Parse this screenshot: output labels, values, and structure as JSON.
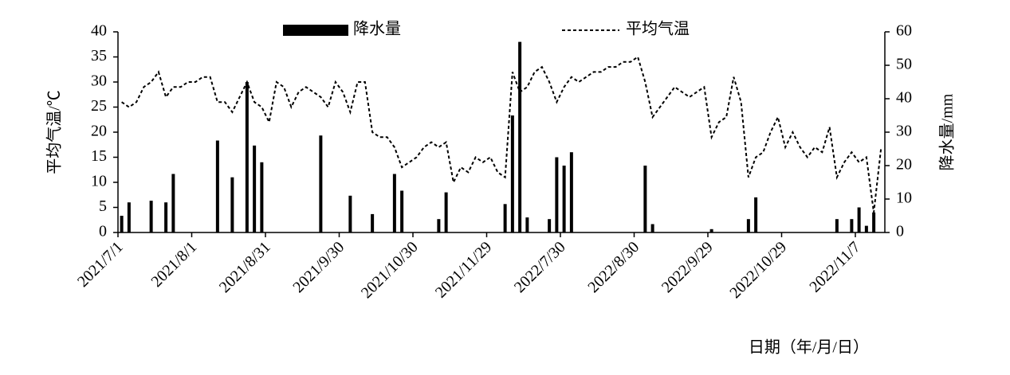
{
  "chart_data": {
    "type": "combo",
    "x_label": "日期（年/月/日）",
    "y_label": "平均气温/℃",
    "y2_label": "降水量/mm",
    "categories": [
      "2021/7/1",
      null,
      null,
      null,
      null,
      null,
      null,
      null,
      null,
      null,
      "2021/8/1",
      null,
      null,
      null,
      null,
      null,
      null,
      null,
      null,
      null,
      "2021/8/31",
      null,
      null,
      null,
      null,
      null,
      null,
      null,
      null,
      null,
      "2021/9/30",
      null,
      null,
      null,
      null,
      null,
      null,
      null,
      null,
      null,
      "2021/10/30",
      null,
      null,
      null,
      null,
      null,
      null,
      null,
      null,
      null,
      "2021/11/29",
      null,
      null,
      null,
      null,
      null,
      null,
      null,
      null,
      null,
      "2022/7/30",
      null,
      null,
      null,
      null,
      null,
      null,
      null,
      null,
      null,
      "2022/8/30",
      null,
      null,
      null,
      null,
      null,
      null,
      null,
      null,
      null,
      "2022/9/29",
      null,
      null,
      null,
      null,
      null,
      null,
      null,
      null,
      null,
      "2022/10/29",
      null,
      null,
      null,
      null,
      null,
      null,
      null,
      null,
      null,
      "2022/11/7",
      null,
      null,
      null
    ],
    "series": [
      {
        "name": "降水量",
        "type": "bar",
        "axis": "y2",
        "color": "#000000",
        "values": [
          5,
          9,
          0,
          0,
          9.5,
          0,
          9,
          17.5,
          0,
          0,
          0,
          0,
          0,
          27.5,
          0,
          16.5,
          0,
          45,
          26,
          21,
          0,
          0,
          0,
          0,
          0,
          0,
          0,
          29,
          0,
          0,
          0,
          11,
          0,
          0,
          5.5,
          0,
          0,
          17.5,
          12.5,
          0,
          0,
          0,
          0,
          4,
          12,
          0,
          0,
          0,
          0,
          0,
          0,
          0,
          8.5,
          35,
          57,
          4.5,
          0,
          0,
          4,
          22.5,
          20,
          24,
          0,
          0,
          0,
          0,
          0,
          0,
          0,
          0,
          0,
          20,
          2.5,
          0,
          0,
          0,
          0,
          0,
          0,
          0,
          1,
          0,
          0,
          0,
          0,
          4,
          10.5,
          0,
          0,
          0,
          0,
          0,
          0,
          0,
          0,
          0,
          0,
          4,
          0,
          4,
          7.5,
          2,
          6,
          0
        ]
      },
      {
        "name": "平均气温",
        "type": "line",
        "axis": "y",
        "color": "#000000",
        "dashed": true,
        "values": [
          26,
          25,
          26,
          29,
          30,
          32,
          27,
          29,
          29,
          30,
          30,
          31,
          31,
          26,
          26,
          24,
          27,
          30,
          26,
          25,
          22,
          30,
          29,
          25,
          28,
          29,
          28,
          27,
          25,
          30,
          28,
          24,
          30,
          30,
          20,
          19,
          19,
          17,
          13,
          14,
          15,
          17,
          18,
          17,
          18,
          10,
          13,
          12,
          15,
          14,
          15,
          12,
          11,
          32,
          28,
          29,
          32,
          33,
          30,
          26,
          29,
          31,
          30,
          31,
          32,
          32,
          33,
          33,
          34,
          34,
          35,
          30,
          23,
          25,
          27,
          29,
          28,
          27,
          28,
          29,
          19,
          22,
          23,
          31,
          26,
          11,
          15,
          16,
          20,
          23,
          17,
          20,
          17,
          15,
          17,
          16,
          21,
          11,
          14,
          16,
          14,
          15,
          4,
          17
        ]
      }
    ],
    "ylim": [
      0,
      40
    ],
    "yticks": [
      0,
      5,
      10,
      15,
      20,
      25,
      30,
      35,
      40
    ],
    "y2lim": [
      0,
      60
    ],
    "y2ticks": [
      0,
      10,
      20,
      30,
      40,
      50,
      60
    ],
    "grid": false,
    "legend": "top"
  }
}
